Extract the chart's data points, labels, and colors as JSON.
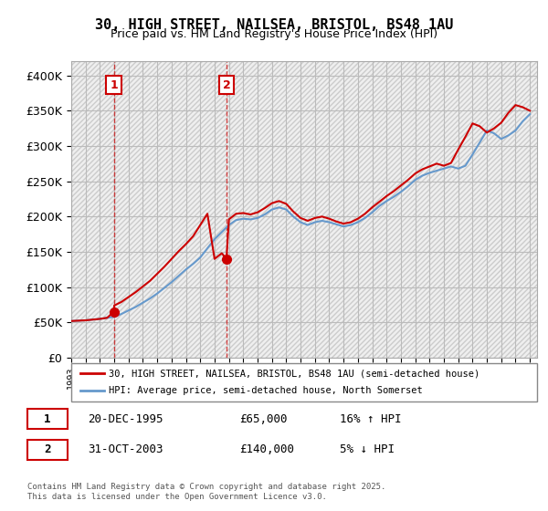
{
  "title": "30, HIGH STREET, NAILSEA, BRISTOL, BS48 1AU",
  "subtitle": "Price paid vs. HM Land Registry's House Price Index (HPI)",
  "legend_line1": "30, HIGH STREET, NAILSEA, BRISTOL, BS48 1AU (semi-detached house)",
  "legend_line2": "HPI: Average price, semi-detached house, North Somerset",
  "annotation1_label": "1",
  "annotation1_date": "20-DEC-1995",
  "annotation1_price": "£65,000",
  "annotation1_hpi": "16% ↑ HPI",
  "annotation2_label": "2",
  "annotation2_date": "31-OCT-2003",
  "annotation2_price": "£140,000",
  "annotation2_hpi": "5% ↓ HPI",
  "footer": "Contains HM Land Registry data © Crown copyright and database right 2025.\nThis data is licensed under the Open Government Licence v3.0.",
  "price_color": "#cc0000",
  "hpi_color": "#6699cc",
  "background_color": "#ffffff",
  "hatch_color": "#dddddd",
  "ylim": [
    0,
    420000
  ],
  "yticks": [
    0,
    50000,
    100000,
    150000,
    200000,
    250000,
    300000,
    350000,
    400000
  ],
  "ytick_labels": [
    "£0",
    "£50K",
    "£100K",
    "£150K",
    "£200K",
    "£250K",
    "£300K",
    "£350K",
    "£400K"
  ],
  "sale1_x": 1995.97,
  "sale1_y": 65000,
  "sale2_x": 2003.83,
  "sale2_y": 140000,
  "xmin": 1993,
  "xmax": 2025.5,
  "hpi_x": [
    1993,
    1993.5,
    1994,
    1994.5,
    1995,
    1995.5,
    1996,
    1996.5,
    1997,
    1997.5,
    1998,
    1998.5,
    1999,
    1999.5,
    2000,
    2000.5,
    2001,
    2001.5,
    2002,
    2002.5,
    2003,
    2003.5,
    2004,
    2004.5,
    2005,
    2005.5,
    2006,
    2006.5,
    2007,
    2007.5,
    2008,
    2008.5,
    2009,
    2009.5,
    2010,
    2010.5,
    2011,
    2011.5,
    2012,
    2012.5,
    2013,
    2013.5,
    2014,
    2014.5,
    2015,
    2015.5,
    2016,
    2016.5,
    2017,
    2017.5,
    2018,
    2018.5,
    2019,
    2019.5,
    2020,
    2020.5,
    2021,
    2021.5,
    2022,
    2022.5,
    2023,
    2023.5,
    2024,
    2024.5,
    2025
  ],
  "hpi_y": [
    52000,
    52500,
    53000,
    54000,
    55000,
    56500,
    58000,
    62000,
    67000,
    72000,
    78000,
    84000,
    91000,
    99000,
    107000,
    116000,
    125000,
    133000,
    142000,
    155000,
    168000,
    178000,
    188000,
    195000,
    197000,
    196000,
    198000,
    203000,
    210000,
    213000,
    210000,
    200000,
    192000,
    188000,
    192000,
    194000,
    192000,
    189000,
    186000,
    188000,
    192000,
    198000,
    206000,
    215000,
    222000,
    228000,
    235000,
    243000,
    252000,
    258000,
    262000,
    265000,
    268000,
    271000,
    268000,
    272000,
    288000,
    305000,
    322000,
    318000,
    310000,
    315000,
    322000,
    335000,
    345000
  ],
  "price_x": [
    1993,
    1993.5,
    1994,
    1994.5,
    1995,
    1995.5,
    1995.97,
    1996,
    1996.5,
    1997,
    1997.5,
    1998,
    1998.5,
    1999,
    1999.5,
    2000,
    2000.5,
    2001,
    2001.5,
    2002,
    2002.5,
    2003,
    2003.5,
    2003.83,
    2004,
    2004.5,
    2005,
    2005.5,
    2006,
    2006.5,
    2007,
    2007.5,
    2008,
    2008.5,
    2009,
    2009.5,
    2010,
    2010.5,
    2011,
    2011.5,
    2012,
    2012.5,
    2013,
    2013.5,
    2014,
    2014.5,
    2015,
    2015.5,
    2016,
    2016.5,
    2017,
    2017.5,
    2018,
    2018.5,
    2019,
    2019.5,
    2020,
    2020.5,
    2021,
    2021.5,
    2022,
    2022.5,
    2023,
    2023.5,
    2024,
    2024.5,
    2025
  ],
  "price_y": [
    52000,
    52500,
    53000,
    54000,
    55000,
    56500,
    65000,
    74000,
    79000,
    86000,
    93000,
    101000,
    109000,
    119000,
    129000,
    140000,
    151000,
    161000,
    172000,
    188000,
    204000,
    140000,
    148000,
    140000,
    196000,
    204000,
    205000,
    203000,
    206000,
    212000,
    219000,
    222000,
    218000,
    207000,
    198000,
    194000,
    198000,
    200000,
    197000,
    193000,
    190000,
    192000,
    197000,
    204000,
    213000,
    221000,
    229000,
    236000,
    244000,
    252000,
    261000,
    267000,
    271000,
    275000,
    272000,
    276000,
    295000,
    313000,
    332000,
    328000,
    319000,
    325000,
    333000,
    347000,
    358000,
    355000,
    350000
  ]
}
